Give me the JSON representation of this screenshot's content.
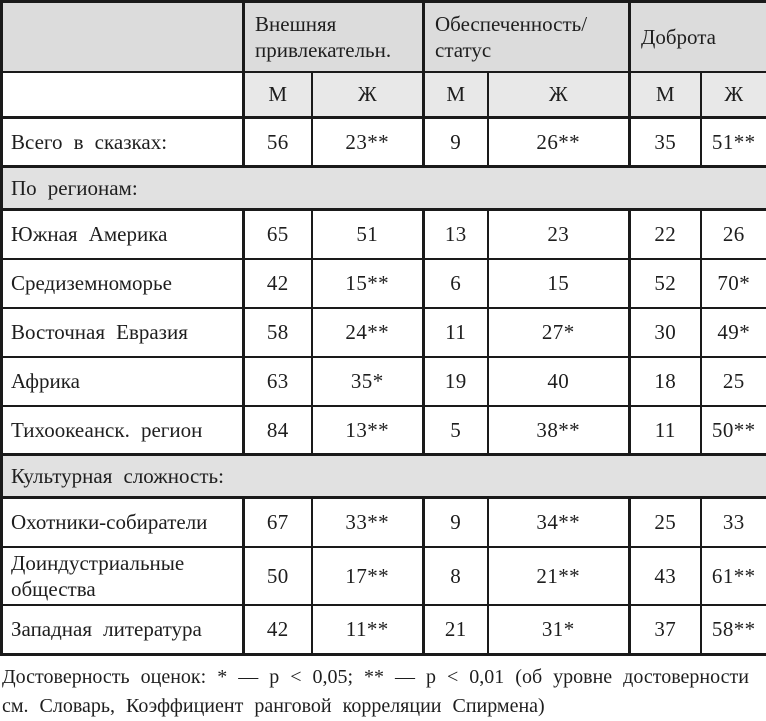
{
  "table": {
    "groups": [
      "Внешняя\nпривлекательн.",
      "Обеспеченность/\nстатус",
      "Доброта"
    ],
    "sub_headers": [
      "М",
      "Ж",
      "М",
      "Ж",
      "М",
      "Ж"
    ],
    "rows": [
      {
        "type": "data",
        "label": "Всего в сказках:",
        "values": [
          "56",
          "23**",
          "9",
          "26**",
          "35",
          "51**"
        ]
      },
      {
        "type": "section",
        "label": "По регионам:"
      },
      {
        "type": "data",
        "label": "Южная Америка",
        "values": [
          "65",
          "51",
          "13",
          "23",
          "22",
          "26"
        ]
      },
      {
        "type": "data",
        "label": "Средиземноморье",
        "values": [
          "42",
          "15**",
          "6",
          "15",
          "52",
          "70*"
        ]
      },
      {
        "type": "data",
        "label": "Восточная Евразия",
        "values": [
          "58",
          "24**",
          "11",
          "27*",
          "30",
          "49*"
        ]
      },
      {
        "type": "data",
        "label": "Африка",
        "values": [
          "63",
          "35*",
          "19",
          "40",
          "18",
          "25"
        ]
      },
      {
        "type": "data",
        "label": "Тихоокеанск. регион",
        "values": [
          "84",
          "13**",
          "5",
          "38**",
          "11",
          "50**"
        ]
      },
      {
        "type": "section",
        "label": "Культурная сложность:"
      },
      {
        "type": "data",
        "label": "Охотники-собиратели",
        "values": [
          "67",
          "33**",
          "9",
          "34**",
          "25",
          "33"
        ]
      },
      {
        "type": "data",
        "label": "Доиндустриальные общества",
        "values": [
          "50",
          "17**",
          "8",
          "21**",
          "43",
          "61**"
        ]
      },
      {
        "type": "data",
        "label": "Западная литература",
        "values": [
          "42",
          "11**",
          "21",
          "31*",
          "37",
          "58**"
        ]
      }
    ]
  },
  "footnote": {
    "line1": "Достоверность оценок: * — p < 0,05; ** — p < 0,01 (об уровне достоверности",
    "line2": "см. Словарь, Коэффициент ранговой корреляции Спирмена)"
  },
  "colors": {
    "table_border": "#1a1a1a",
    "group_header_bg": "#dcdcdc",
    "subheader_bg": "#e8e8e8",
    "section_bg": "#e1e1e1",
    "text": "#1e1e1e",
    "page_bg": "#ffffff"
  }
}
